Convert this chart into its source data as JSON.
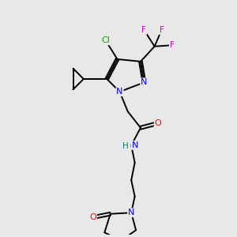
{
  "background_color": "#e8e8e8",
  "fig_size": [
    3.0,
    3.0
  ],
  "dpi": 100,
  "C_color": "#000000",
  "N_color": "#0000ff",
  "O_color": "#ff0000",
  "F_color": "#cc00cc",
  "Cl_color": "#00aa00",
  "H_color": "#008080",
  "bond_lw": 1.4,
  "xlim": [
    0,
    10
  ],
  "ylim": [
    0,
    10
  ]
}
